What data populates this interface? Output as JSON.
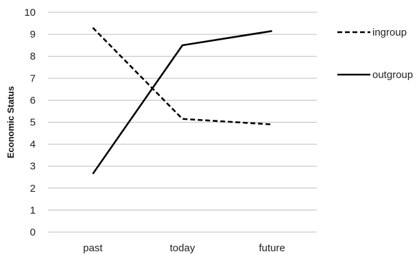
{
  "chart_data": {
    "type": "line",
    "categories": [
      "past",
      "today",
      "future"
    ],
    "ylabel": "Economic Status",
    "ylim": [
      0,
      10
    ],
    "yticks": [
      0,
      1,
      2,
      3,
      4,
      5,
      6,
      7,
      8,
      9,
      10
    ],
    "grid": true,
    "legend_position": "right",
    "series": [
      {
        "name": "ingroup",
        "values": [
          9.3,
          5.15,
          4.9
        ],
        "line_style": "dashed",
        "color": "#000000"
      },
      {
        "name": "outgroup",
        "values": [
          2.65,
          8.5,
          9.15
        ],
        "line_style": "solid",
        "color": "#000000"
      }
    ],
    "gridline_color": "#bdbdbd"
  }
}
